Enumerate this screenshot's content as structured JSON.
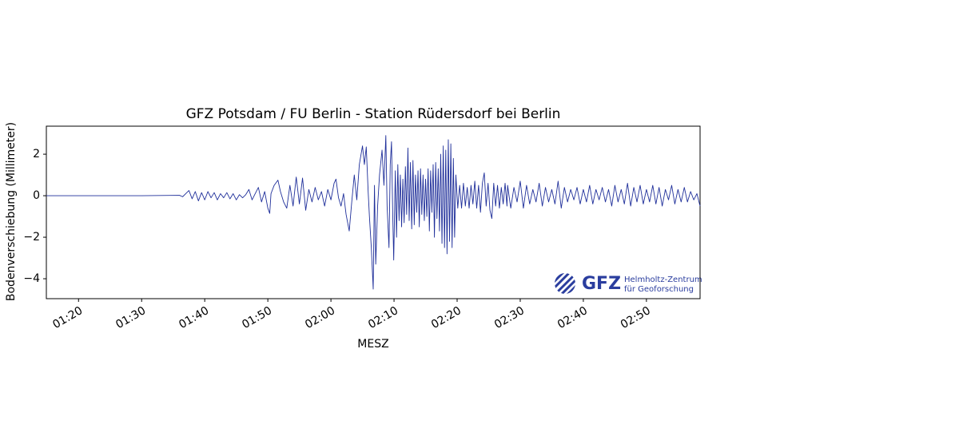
{
  "chart_data": {
    "type": "line",
    "title": "GFZ Potsdam / FU Berlin - Station Rüdersdorf bei Berlin",
    "x_label": "MESZ",
    "y_label": "Bodenverschiebung (Millimeter)",
    "xlim": [
      74.9,
      178.5
    ],
    "ylim": [
      -4.96,
      3.35
    ],
    "xticks": [
      {
        "value": 80,
        "label": "01:20"
      },
      {
        "value": 90,
        "label": "01:30"
      },
      {
        "value": 100,
        "label": "01:40"
      },
      {
        "value": 110,
        "label": "01:50"
      },
      {
        "value": 120,
        "label": "02:00"
      },
      {
        "value": 130,
        "label": "02:10"
      },
      {
        "value": 140,
        "label": "02:20"
      },
      {
        "value": 150,
        "label": "02:30"
      },
      {
        "value": 160,
        "label": "02:40"
      },
      {
        "value": 170,
        "label": "02:50"
      }
    ],
    "yticks": [
      {
        "value": -4,
        "label": "−4"
      },
      {
        "value": -2,
        "label": "−2"
      },
      0,
      2
    ],
    "logo": {
      "short": "GFZ",
      "line1": "Helmholtz-Zentrum",
      "line2": "für Geoforschung"
    },
    "series": [
      {
        "color": "#1f2f9a",
        "x": [
          74.9,
          90,
          96,
          96.5,
          97,
          97.5,
          98,
          98.5,
          99,
          99.5,
          100,
          100.5,
          101,
          101.5,
          102,
          102.5,
          103,
          103.5,
          104,
          104.5,
          105,
          105.5,
          106,
          106.5,
          107,
          107.5,
          108,
          108.5,
          109,
          109.5,
          110,
          110.3,
          110.5,
          111,
          111.6,
          112,
          112.5,
          113,
          113.5,
          114,
          114.5,
          115,
          115.5,
          116,
          116.5,
          117,
          117.5,
          118,
          118.5,
          119,
          119.5,
          120,
          120.5,
          120.8,
          121.2,
          121.6,
          122,
          122.4,
          122.9,
          123.3,
          123.7,
          124.1,
          124.5,
          125,
          125.3,
          125.6,
          125.9,
          126.1,
          126.4,
          126.7,
          126.9,
          127.1,
          127.4,
          127.7,
          128.1,
          128.4,
          128.7,
          128.9,
          129.2,
          129.4,
          129.6,
          129.8,
          129.95,
          130.2,
          130.4,
          130.6,
          130.8,
          131,
          131.2,
          131.4,
          131.6,
          131.8,
          132,
          132.2,
          132.4,
          132.6,
          132.8,
          133,
          133.2,
          133.4,
          133.6,
          133.8,
          134,
          134.2,
          134.4,
          134.6,
          134.8,
          135,
          135.2,
          135.4,
          135.6,
          135.8,
          136,
          136.2,
          136.4,
          136.6,
          136.8,
          137,
          137.2,
          137.4,
          137.6,
          137.8,
          138,
          138.2,
          138.4,
          138.6,
          138.8,
          139,
          139.2,
          139.4,
          139.6,
          139.8,
          140.1,
          140.4,
          140.7,
          141,
          141.3,
          141.6,
          141.9,
          142.2,
          142.5,
          142.8,
          143.1,
          143.4,
          143.7,
          144,
          144.3,
          144.6,
          144.9,
          145.2,
          145.5,
          145.8,
          146.1,
          146.4,
          146.7,
          147,
          147.3,
          147.6,
          147.9,
          148,
          148.5,
          149,
          149.5,
          150,
          150.5,
          151,
          151.5,
          152,
          152.5,
          153,
          153.5,
          154,
          154.5,
          155,
          155.5,
          156,
          156.5,
          157,
          157.5,
          158,
          158.5,
          159,
          159.5,
          160,
          160.5,
          161,
          161.5,
          162,
          162.5,
          163,
          163.5,
          164,
          164.5,
          165,
          165.5,
          166,
          166.5,
          167,
          167.5,
          168,
          168.5,
          169,
          169.5,
          170,
          170.5,
          171,
          171.5,
          172,
          172.5,
          173,
          173.5,
          174,
          174.5,
          175,
          175.5,
          176,
          176.5,
          177,
          177.5,
          178,
          178.5
        ],
        "values": [
          0,
          0,
          0.02,
          -0.05,
          0.1,
          0.25,
          -0.15,
          0.2,
          -0.25,
          0.15,
          -0.2,
          0.2,
          -0.1,
          0.15,
          -0.2,
          0.1,
          -0.1,
          0.15,
          -0.15,
          0.1,
          -0.2,
          0.05,
          -0.1,
          0.05,
          0.3,
          -0.2,
          0.1,
          0.4,
          -0.3,
          0.2,
          -0.6,
          -0.85,
          0.1,
          0.5,
          0.75,
          0.2,
          -0.3,
          -0.6,
          0.5,
          -0.5,
          0.9,
          -0.4,
          0.85,
          -0.7,
          0.3,
          -0.3,
          0.4,
          -0.2,
          0.2,
          -0.5,
          0.3,
          -0.2,
          0.6,
          0.8,
          -0.1,
          -0.5,
          0.1,
          -0.9,
          -1.7,
          -0.3,
          1.0,
          -0.2,
          1.5,
          2.4,
          1.5,
          2.35,
          0.2,
          -1.0,
          -2.5,
          -4.5,
          0.5,
          -3.3,
          -0.5,
          1.0,
          2.2,
          0.5,
          2.9,
          -0.5,
          -2.5,
          1.5,
          2.6,
          -1.0,
          -3.1,
          1.2,
          -2.0,
          1.5,
          -1.2,
          1.0,
          -1.5,
          0.8,
          -1.3,
          1.4,
          -0.9,
          2.3,
          -1.2,
          1.6,
          -1.6,
          1.7,
          -1.4,
          1.0,
          -0.8,
          1.2,
          -1.5,
          1.3,
          -0.9,
          1.0,
          -1.2,
          0.8,
          -1.0,
          1.3,
          -1.7,
          1.2,
          -0.8,
          1.5,
          -2.0,
          1.6,
          -1.1,
          1.3,
          -1.7,
          2.0,
          -2.3,
          2.4,
          -2.5,
          2.2,
          -2.8,
          2.7,
          -2.2,
          2.5,
          -2.5,
          1.8,
          -2.0,
          1.0,
          -0.6,
          0.5,
          -0.6,
          0.6,
          -0.5,
          0.4,
          -0.6,
          0.5,
          -0.4,
          0.7,
          -0.6,
          0.5,
          -0.8,
          0.6,
          1.1,
          -0.5,
          0.6,
          -0.7,
          -1.1,
          0.6,
          -0.5,
          0.5,
          -0.6,
          0.4,
          -0.4,
          0.6,
          -0.5,
          0.5,
          -0.6,
          0.4,
          -0.3,
          0.7,
          -0.6,
          0.5,
          -0.4,
          0.3,
          -0.3,
          0.6,
          -0.5,
          0.4,
          -0.3,
          0.3,
          -0.4,
          0.7,
          -0.6,
          0.4,
          -0.3,
          0.3,
          -0.2,
          0.4,
          -0.4,
          0.3,
          -0.3,
          0.5,
          -0.4,
          0.3,
          -0.2,
          0.4,
          -0.3,
          0.3,
          -0.5,
          0.5,
          -0.3,
          0.3,
          -0.4,
          0.6,
          -0.5,
          0.4,
          -0.3,
          0.5,
          -0.4,
          0.3,
          -0.3,
          0.5,
          -0.4,
          0.4,
          -0.5,
          0.3,
          -0.2,
          0.5,
          -0.4,
          0.3,
          -0.3,
          0.4,
          -0.3,
          0.2,
          -0.2,
          0.1,
          -0.5
        ]
      }
    ]
  }
}
